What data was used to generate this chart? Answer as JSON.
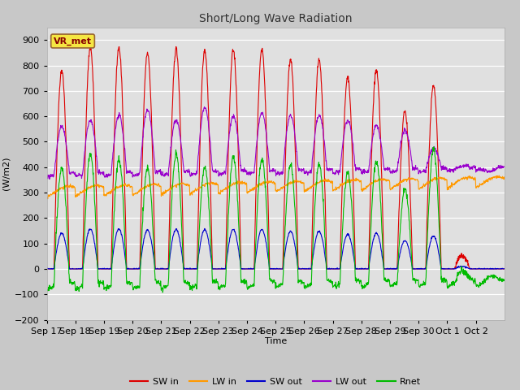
{
  "title": "Short/Long Wave Radiation",
  "xlabel": "Time",
  "ylabel": "(W/m2)",
  "ylim": [
    -200,
    950
  ],
  "yticks": [
    -200,
    -100,
    0,
    100,
    200,
    300,
    400,
    500,
    600,
    700,
    800,
    900
  ],
  "annotation": "VR_met",
  "xtick_labels": [
    "Sep 17",
    "Sep 18",
    "Sep 19",
    "Sep 20",
    "Sep 21",
    "Sep 22",
    "Sep 23",
    "Sep 24",
    "Sep 25",
    "Sep 26",
    "Sep 27",
    "Sep 28",
    "Sep 29",
    "Sep 30",
    "Oct 1",
    "Oct 2"
  ],
  "colors": {
    "SW_in": "#dd0000",
    "LW_in": "#ff9900",
    "SW_out": "#0000cc",
    "LW_out": "#9900cc",
    "Rnet": "#00bb00"
  },
  "legend_labels": [
    "SW in",
    "LW in",
    "SW out",
    "LW out",
    "Rnet"
  ],
  "fig_bg": "#c8c8c8",
  "plot_bg": "#e0e0e0",
  "grid_color": "#ffffff",
  "num_days": 16,
  "hours_per_day": 24,
  "dt": 0.25,
  "sw_in_peaks": [
    780,
    870,
    870,
    850,
    865,
    860,
    860,
    865,
    820,
    820,
    750,
    780,
    620,
    720,
    50,
    0
  ],
  "lw_out_day_peaks": [
    555,
    580,
    600,
    620,
    580,
    630,
    595,
    610,
    600,
    600,
    580,
    560,
    540,
    470,
    400,
    380
  ],
  "lw_in_base": 300,
  "lw_out_base": 370,
  "albedo": 0.18,
  "dayrise": 6.0,
  "dayset": 19.0
}
